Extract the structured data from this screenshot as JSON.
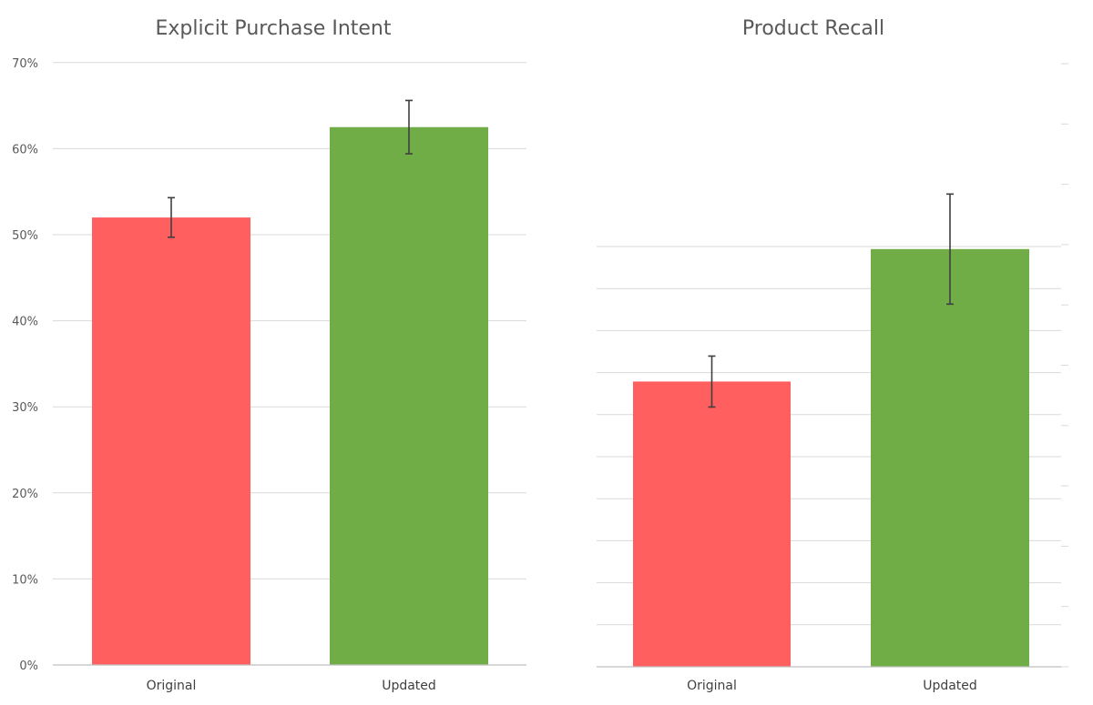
{
  "chart_data": [
    {
      "type": "bar",
      "title": "Explicit Purchase Intent",
      "xlabel": "",
      "ylabel": "",
      "categories": [
        "Original",
        "Updated"
      ],
      "values": [
        0.52,
        0.625
      ],
      "errors": [
        0.023,
        0.031
      ],
      "colors": [
        "#FF5F5F",
        "#70AD47"
      ],
      "ylim": [
        0,
        0.7
      ],
      "yticks": [
        0,
        0.1,
        0.2,
        0.3,
        0.4,
        0.5,
        0.6,
        0.7
      ],
      "ytick_labels": [
        "0%",
        "10%",
        "20%",
        "30%",
        "40%",
        "50%",
        "60%",
        "70%"
      ],
      "grid": true,
      "legend": "none"
    },
    {
      "type": "bar",
      "title": "Product Recall",
      "xlabel": "",
      "ylabel": "",
      "categories": [
        "Original",
        "Updated"
      ],
      "values": [
        0.28,
        0.41
      ],
      "errors": [
        0.025,
        0.054
      ],
      "colors": [
        "#FF5F5F",
        "#70AD47"
      ],
      "ylim": [
        0,
        0.7
      ],
      "ytick_labels": [],
      "grid": true,
      "legend": "none"
    }
  ]
}
